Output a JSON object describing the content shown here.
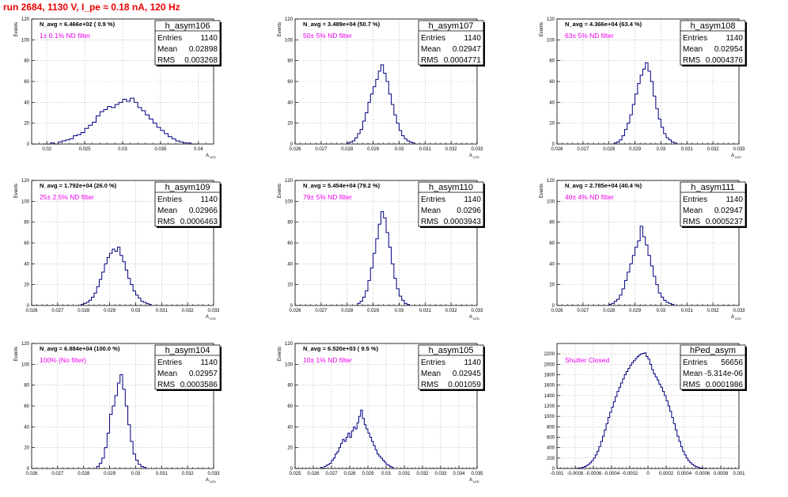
{
  "page_title": "run 2684,  1130 V, I_pe ≈ 0.18 nA, 120 Hz",
  "colors": {
    "title": "#ee0000",
    "histogram": "#000080",
    "annotation": "#ee00ee",
    "grid": "#b0b0b0"
  },
  "chart_data": [
    {
      "type": "histogram",
      "name": "h_asym106",
      "ylabel": "Events",
      "xlabel": "A",
      "xlabel_sub": "LED",
      "xlim": [
        0.018,
        0.042
      ],
      "ylim": [
        0,
        120
      ],
      "xticks": [
        0.02,
        0.025,
        0.03,
        0.035,
        0.04
      ],
      "xtick_labels": [
        "0.02",
        "0.025",
        "0.03",
        "0.035",
        "0.04"
      ],
      "yticks": [
        0,
        20,
        40,
        60,
        80,
        100,
        120
      ],
      "grid": true,
      "stats": {
        "entries": "1140",
        "mean": "0.02898",
        "rms": "0.003268"
      },
      "n_avg": "N_avg = 6.466e+02 ( 0.9 %)",
      "filter": "1± 0.1% ND filter",
      "bins_start": 0.0195,
      "bin_width": 0.0005,
      "counts": [
        0,
        0,
        1,
        0,
        2,
        3,
        4,
        5,
        8,
        9,
        11,
        15,
        18,
        21,
        27,
        31,
        33,
        36,
        35,
        38,
        40,
        43,
        41,
        44,
        40,
        35,
        32,
        28,
        24,
        20,
        16,
        13,
        10,
        7,
        5,
        3,
        2,
        1,
        1,
        0,
        0
      ]
    },
    {
      "type": "histogram",
      "name": "h_asym107",
      "ylabel": "Events",
      "xlabel": "A",
      "xlabel_sub": "LED",
      "xlim": [
        0.026,
        0.033
      ],
      "ylim": [
        0,
        120
      ],
      "xticks": [
        0.026,
        0.027,
        0.028,
        0.029,
        0.03,
        0.031,
        0.032,
        0.033
      ],
      "xtick_labels": [
        "0.026",
        "0.027",
        "0.028",
        "0.029",
        "0.03",
        "0.031",
        "0.032",
        "0.033"
      ],
      "yticks": [
        0,
        20,
        40,
        60,
        80,
        100,
        120
      ],
      "grid": true,
      "stats": {
        "entries": "1140",
        "mean": "0.02947",
        "rms": "0.0004771"
      },
      "n_avg": "N_avg = 3.489e+04 (50.7 %)",
      "filter": "50± 5% ND filter",
      "bins_start": 0.028,
      "bin_width": 0.0001,
      "counts": [
        1,
        2,
        3,
        6,
        10,
        14,
        22,
        30,
        40,
        48,
        55,
        62,
        70,
        76,
        68,
        60,
        48,
        38,
        28,
        20,
        13,
        8,
        5,
        3,
        2,
        1
      ]
    },
    {
      "type": "histogram",
      "name": "h_asym108",
      "ylabel": "Events",
      "xlabel": "A",
      "xlabel_sub": "LED",
      "xlim": [
        0.026,
        0.033
      ],
      "ylim": [
        0,
        120
      ],
      "xticks": [
        0.026,
        0.027,
        0.028,
        0.029,
        0.03,
        0.031,
        0.032,
        0.033
      ],
      "xtick_labels": [
        "0.026",
        "0.027",
        "0.028",
        "0.029",
        "0.03",
        "0.031",
        "0.032",
        "0.033"
      ],
      "yticks": [
        0,
        20,
        40,
        60,
        80,
        100,
        120
      ],
      "grid": true,
      "stats": {
        "entries": "1140",
        "mean": "0.02954",
        "rms": "0.0004376"
      },
      "n_avg": "N_avg = 4.366e+04 (63.4 %)",
      "filter": "63± 5% ND filter",
      "bins_start": 0.0282,
      "bin_width": 0.0001,
      "counts": [
        1,
        2,
        4,
        8,
        14,
        20,
        28,
        38,
        48,
        58,
        66,
        72,
        78,
        70,
        60,
        46,
        34,
        24,
        16,
        10,
        6,
        4,
        2,
        1
      ]
    },
    {
      "type": "histogram",
      "name": "h_asym109",
      "ylabel": "Events",
      "xlabel": "A",
      "xlabel_sub": "LED",
      "xlim": [
        0.026,
        0.033
      ],
      "ylim": [
        0,
        120
      ],
      "xticks": [
        0.026,
        0.027,
        0.028,
        0.029,
        0.03,
        0.031,
        0.032,
        0.033
      ],
      "xtick_labels": [
        "0.026",
        "0.027",
        "0.028",
        "0.029",
        "0.03",
        "0.031",
        "0.032",
        "0.033"
      ],
      "yticks": [
        0,
        20,
        40,
        60,
        80,
        100,
        120
      ],
      "grid": true,
      "stats": {
        "entries": "1140",
        "mean": "0.02966",
        "rms": "0.0006463"
      },
      "n_avg": "N_avg = 1.792e+04 (26.0 %)",
      "filter": "25± 2.5% ND filter",
      "bins_start": 0.0279,
      "bin_width": 0.0001,
      "counts": [
        1,
        2,
        3,
        5,
        8,
        12,
        18,
        25,
        32,
        40,
        46,
        50,
        54,
        52,
        56,
        48,
        42,
        34,
        26,
        20,
        14,
        10,
        7,
        4,
        3,
        2,
        1
      ]
    },
    {
      "type": "histogram",
      "name": "h_asym110",
      "ylabel": "Events",
      "xlabel": "A",
      "xlabel_sub": "LED",
      "xlim": [
        0.026,
        0.033
      ],
      "ylim": [
        0,
        120
      ],
      "xticks": [
        0.026,
        0.027,
        0.028,
        0.029,
        0.03,
        0.031,
        0.032,
        0.033
      ],
      "xtick_labels": [
        "0.026",
        "0.027",
        "0.028",
        "0.029",
        "0.03",
        "0.031",
        "0.032",
        "0.033"
      ],
      "yticks": [
        0,
        20,
        40,
        60,
        80,
        100,
        120
      ],
      "grid": true,
      "stats": {
        "entries": "1140",
        "mean": "0.0296",
        "rms": "0.0003943"
      },
      "n_avg": "N_avg = 5.454e+04 (79.2 %)",
      "filter": "79± 5% ND filter",
      "bins_start": 0.0284,
      "bin_width": 0.0001,
      "counts": [
        2,
        4,
        8,
        14,
        24,
        36,
        50,
        64,
        78,
        90,
        84,
        70,
        56,
        40,
        26,
        16,
        9,
        5,
        2,
        1
      ]
    },
    {
      "type": "histogram",
      "name": "h_asym111",
      "ylabel": "Events",
      "xlabel": "A",
      "xlabel_sub": "LED",
      "xlim": [
        0.026,
        0.033
      ],
      "ylim": [
        0,
        120
      ],
      "xticks": [
        0.026,
        0.027,
        0.028,
        0.029,
        0.03,
        0.031,
        0.032,
        0.033
      ],
      "xtick_labels": [
        "0.026",
        "0.027",
        "0.028",
        "0.029",
        "0.03",
        "0.031",
        "0.032",
        "0.033"
      ],
      "yticks": [
        0,
        20,
        40,
        60,
        80,
        100,
        120
      ],
      "grid": true,
      "stats": {
        "entries": "1140",
        "mean": "0.02947",
        "rms": "0.0005237"
      },
      "n_avg": "N_avg = 2.785e+04 (40.4 %)",
      "filter": "40± 4% ND filter",
      "bins_start": 0.028,
      "bin_width": 0.0001,
      "counts": [
        1,
        2,
        4,
        6,
        10,
        16,
        24,
        32,
        40,
        48,
        56,
        62,
        76,
        66,
        58,
        48,
        38,
        28,
        20,
        12,
        8,
        5,
        3,
        2,
        1
      ]
    },
    {
      "type": "histogram",
      "name": "h_asym104",
      "ylabel": "Events",
      "xlabel": "A",
      "xlabel_sub": "LED",
      "xlim": [
        0.026,
        0.033
      ],
      "ylim": [
        0,
        120
      ],
      "xticks": [
        0.026,
        0.027,
        0.028,
        0.029,
        0.03,
        0.031,
        0.032,
        0.033
      ],
      "xtick_labels": [
        "0.026",
        "0.027",
        "0.028",
        "0.029",
        "0.03",
        "0.031",
        "0.032",
        "0.033"
      ],
      "yticks": [
        0,
        20,
        40,
        60,
        80,
        100,
        120
      ],
      "grid": true,
      "stats": {
        "entries": "1140",
        "mean": "0.02957",
        "rms": "0.0003586"
      },
      "n_avg": "N_avg = 6.884e+04 (100.0 %)",
      "filter": "100% (No filter)",
      "bins_start": 0.0285,
      "bin_width": 0.0001,
      "counts": [
        2,
        5,
        10,
        20,
        34,
        52,
        60,
        70,
        82,
        90,
        76,
        60,
        42,
        26,
        14,
        8,
        4,
        2,
        1
      ]
    },
    {
      "type": "histogram",
      "name": "h_asym105",
      "ylabel": "Events",
      "xlabel": "A",
      "xlabel_sub": "LED",
      "xlim": [
        0.025,
        0.035
      ],
      "ylim": [
        0,
        120
      ],
      "xticks": [
        0.025,
        0.026,
        0.027,
        0.028,
        0.029,
        0.03,
        0.031,
        0.032,
        0.033,
        0.034,
        0.035
      ],
      "xtick_labels": [
        "0.025",
        "0.026",
        "0.027",
        "0.028",
        "0.029",
        "0.03",
        "0.031",
        "0.032",
        "0.033",
        "0.034",
        "0.035"
      ],
      "yticks": [
        0,
        20,
        40,
        60,
        80,
        100,
        120
      ],
      "grid": true,
      "stats": {
        "entries": "1140",
        "mean": "0.02945",
        "rms": "0.001059"
      },
      "n_avg": "N_avg = 6.520e+03 ( 9.5 %)",
      "filter": "10± 1% ND filter",
      "bins_start": 0.0264,
      "bin_width": 0.0001,
      "counts": [
        1,
        0,
        2,
        3,
        4,
        5,
        8,
        10,
        14,
        16,
        20,
        24,
        28,
        26,
        30,
        34,
        30,
        36,
        40,
        38,
        44,
        50,
        56,
        48,
        42,
        38,
        34,
        30,
        26,
        22,
        18,
        14,
        12,
        10,
        8,
        6,
        4,
        3,
        2,
        1
      ]
    },
    {
      "type": "histogram",
      "name": "hPed_asym",
      "ylabel": "",
      "xlabel": "",
      "xlabel_sub": "",
      "xlim": [
        -0.001,
        0.001
      ],
      "ylim": [
        0,
        2400
      ],
      "xticks": [
        -0.001,
        -0.0008,
        -0.0006,
        -0.0004,
        -0.0002,
        0,
        0.0002,
        0.0004,
        0.0006,
        0.0008,
        0.001
      ],
      "xtick_labels": [
        "-0.001",
        "-0.0008",
        "-0.0006",
        "-0.0004",
        "-0.0002",
        "0",
        "0.0002",
        "0.0004",
        "0.0006",
        "0.0008",
        "0.001"
      ],
      "yticks": [
        0,
        200,
        400,
        600,
        800,
        1000,
        1200,
        1400,
        1600,
        1800,
        2000,
        2200
      ],
      "grid": true,
      "stats": {
        "entries": "56656",
        "mean": "-5.314e-06",
        "rms": "0.0001986"
      },
      "n_avg": "",
      "filter": "Shutter Closed",
      "bins_start": -0.0008,
      "bin_width": 2e-05,
      "counts": [
        2,
        4,
        8,
        14,
        24,
        38,
        56,
        80,
        110,
        150,
        200,
        260,
        330,
        420,
        520,
        620,
        740,
        860,
        980,
        1080,
        1180,
        1280,
        1380,
        1480,
        1560,
        1640,
        1720,
        1800,
        1860,
        1920,
        1980,
        2030,
        2070,
        2110,
        2150,
        2180,
        2200,
        2210,
        2220,
        2150,
        2100,
        2000,
        1900,
        1820,
        1760,
        1700,
        1620,
        1560,
        1480,
        1400,
        1300,
        1200,
        1100,
        980,
        860,
        740,
        620,
        520,
        420,
        330,
        260,
        200,
        150,
        110,
        80,
        56,
        38,
        24,
        14,
        8,
        4,
        2
      ]
    }
  ]
}
